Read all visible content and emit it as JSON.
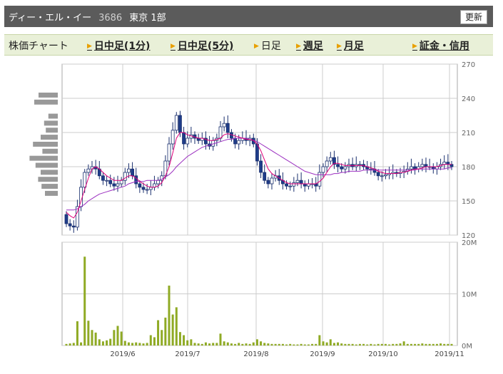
{
  "header": {
    "stock_name": "ディー・エル・イー",
    "code": "3686",
    "market": "東京 1部",
    "refresh_label": "更新"
  },
  "tabs": {
    "section_label": "株価チャート",
    "items": [
      {
        "label": "日中足(1分)",
        "current": false
      },
      {
        "label": "日中足(5分)",
        "current": false
      },
      {
        "label": "日足",
        "current": true
      },
      {
        "label": "週足",
        "current": false
      },
      {
        "label": "月足",
        "current": false
      },
      {
        "label": "証金・信用",
        "current": false
      }
    ]
  },
  "colors": {
    "up_candle": "#ffffff",
    "down_candle": "#1f3d8a",
    "ma_short": "#e0007a",
    "ma_long": "#9b2fc0",
    "volume": "#8faa24",
    "volume_profile": "#999999",
    "grid": "#cccccc"
  },
  "chart_data": [
    {
      "type": "candlestick",
      "x_labels": [
        "2019/6",
        "2019/7",
        "2019/8",
        "2019/9",
        "2019/10",
        "2019/11"
      ],
      "y_ticks": [
        "120",
        "150",
        "180",
        "210",
        "240",
        "270"
      ],
      "ylim": [
        120,
        270
      ],
      "close_series": [
        130,
        128,
        127,
        145,
        162,
        175,
        178,
        180,
        178,
        172,
        168,
        168,
        165,
        163,
        165,
        168,
        175,
        178,
        172,
        165,
        162,
        160,
        160,
        162,
        165,
        168,
        172,
        185,
        200,
        212,
        225,
        210,
        200,
        205,
        208,
        205,
        203,
        205,
        200,
        198,
        203,
        205,
        215,
        218,
        210,
        205,
        200,
        203,
        205,
        203,
        205,
        200,
        185,
        175,
        168,
        165,
        170,
        172,
        168,
        165,
        163,
        163,
        166,
        168,
        165,
        163,
        165,
        165,
        163,
        175,
        180,
        185,
        188,
        182,
        180,
        178,
        180,
        182,
        180,
        182,
        182,
        180,
        178,
        178,
        175,
        172,
        172,
        173,
        174,
        175,
        174,
        175,
        176,
        178,
        180,
        178,
        180,
        182,
        180,
        180,
        178,
        180,
        182,
        184,
        182,
        180
      ],
      "ma_short": [
        140,
        137,
        135,
        140,
        150,
        160,
        170,
        178,
        180,
        178,
        175,
        172,
        170,
        168,
        168,
        168,
        170,
        172,
        172,
        170,
        167,
        165,
        163,
        162,
        162,
        163,
        166,
        172,
        180,
        192,
        205,
        210,
        210,
        208,
        207,
        206,
        205,
        205,
        204,
        203,
        203,
        204,
        205,
        208,
        209,
        208,
        207,
        206,
        205,
        204,
        204,
        203,
        200,
        194,
        186,
        178,
        174,
        172,
        170,
        168,
        166,
        165,
        165,
        165,
        165,
        165,
        165,
        165,
        165,
        167,
        170,
        175,
        180,
        183,
        183,
        182,
        181,
        181,
        181,
        181,
        181,
        181,
        180,
        179,
        178,
        176,
        175,
        174,
        174,
        174,
        174,
        175,
        175,
        176,
        177,
        178,
        178,
        179,
        180,
        180,
        180,
        180,
        181,
        182,
        182,
        182
      ],
      "ma_long": [
        142,
        142,
        142,
        143,
        145,
        147,
        150,
        152,
        154,
        156,
        157,
        158,
        159,
        160,
        161,
        162,
        163,
        165,
        166,
        167,
        167,
        167,
        168,
        168,
        168,
        168,
        169,
        171,
        173,
        176,
        180,
        183,
        186,
        189,
        191,
        193,
        195,
        197,
        198,
        199,
        200,
        201,
        202,
        203,
        204,
        204,
        205,
        205,
        205,
        205,
        204,
        203,
        202,
        200,
        198,
        196,
        194,
        192,
        190,
        188,
        186,
        184,
        182,
        180,
        178,
        176,
        175,
        174,
        173,
        173,
        173,
        173,
        173,
        174,
        174,
        175,
        175,
        176,
        176,
        176,
        176,
        177,
        177,
        177,
        177,
        177,
        177,
        177,
        177,
        177,
        177,
        177,
        177,
        177,
        177,
        177,
        178,
        178,
        178,
        178,
        178,
        178,
        178,
        178,
        179,
        179
      ]
    },
    {
      "type": "bar",
      "x_labels": [
        "2019/6",
        "2019/7",
        "2019/8",
        "2019/9",
        "2019/10",
        "2019/11"
      ],
      "y_ticks": [
        "0M",
        "10M",
        "20M"
      ],
      "ylim": [
        0,
        20
      ],
      "unit": "M",
      "values": [
        0.3,
        0.4,
        0.5,
        4.7,
        0.6,
        17.2,
        4.8,
        3.0,
        2.5,
        1.2,
        0.8,
        1.0,
        1.3,
        3.0,
        3.8,
        2.7,
        0.9,
        0.6,
        0.5,
        0.6,
        0.5,
        0.4,
        0.5,
        2.0,
        1.6,
        4.9,
        3.0,
        5.4,
        11.6,
        6.0,
        7.4,
        2.6,
        2.0,
        1.0,
        1.2,
        0.5,
        0.4,
        0.3,
        0.6,
        0.4,
        0.5,
        0.5,
        2.3,
        0.8,
        0.6,
        0.4,
        0.3,
        0.5,
        0.3,
        0.4,
        0.3,
        0.6,
        1.2,
        0.8,
        0.5,
        0.4,
        0.3,
        0.3,
        0.3,
        0.3,
        0.2,
        0.3,
        0.2,
        0.2,
        0.3,
        0.2,
        0.2,
        0.3,
        0.3,
        2.0,
        0.8,
        0.6,
        1.2,
        0.5,
        0.6,
        0.4,
        0.3,
        0.3,
        0.3,
        0.2,
        0.3,
        0.3,
        0.2,
        0.3,
        0.2,
        0.3,
        0.3,
        0.3,
        0.2,
        0.3,
        0.3,
        0.4,
        0.8,
        0.3,
        0.3,
        0.3,
        0.3,
        0.4,
        0.3,
        0.3,
        0.3,
        0.3,
        0.4,
        0.3,
        0.3,
        0.3
      ],
      "volume_profile": [
        0.45,
        0.55,
        0.0,
        0.22,
        0.32,
        0.28,
        0.4,
        0.58,
        0.36,
        0.66,
        0.52,
        0.4,
        0.46,
        0.38,
        0.3,
        0.0,
        0.0,
        0.0,
        0.0
      ]
    }
  ]
}
